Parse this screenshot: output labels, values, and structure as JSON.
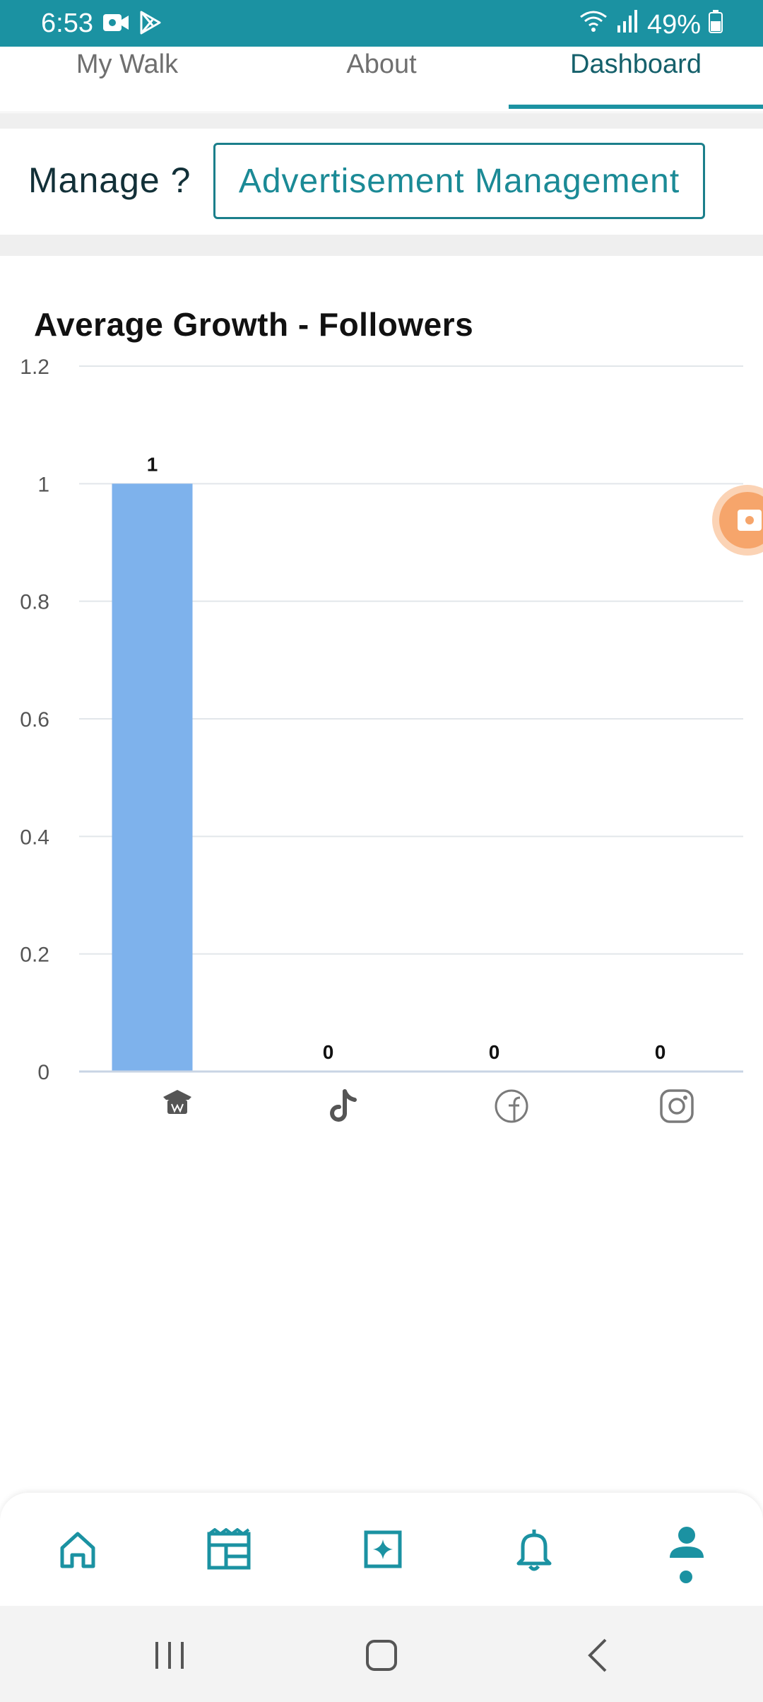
{
  "status": {
    "time": "6:53",
    "battery": "49%",
    "icons": [
      "video-camera-icon",
      "play-store-icon",
      "wifi-icon",
      "signal-icon",
      "battery-icon"
    ]
  },
  "tabs": [
    {
      "label": "My Walk"
    },
    {
      "label": "About"
    },
    {
      "label": "Dashboard",
      "active": true
    }
  ],
  "manage": {
    "label": "Manage ?",
    "button_label": "Advertisement Management"
  },
  "chart_data": {
    "type": "bar",
    "title": "Average Growth - Followers",
    "categories": [
      "App",
      "TikTok",
      "Facebook",
      "Instagram"
    ],
    "category_icons": [
      "app-logo-icon",
      "tiktok-icon",
      "facebook-icon",
      "instagram-icon"
    ],
    "values": [
      1,
      0,
      0,
      0
    ],
    "data_labels": [
      "1",
      "0",
      "0",
      "0"
    ],
    "ylim": [
      0,
      1.2
    ],
    "yticks": [
      "0",
      "0.2",
      "0.4",
      "0.6",
      "0.8",
      "1",
      "1.2"
    ],
    "grid": true,
    "bar_color": "#7eb2ec"
  },
  "bottom_nav": {
    "items": [
      "home-icon",
      "feed-icon",
      "sparkle-icon",
      "bell-icon",
      "profile-icon"
    ],
    "accent": "#1b92a2"
  },
  "colors": {
    "primary": "#1b92a2",
    "dark_text": "#123038"
  }
}
